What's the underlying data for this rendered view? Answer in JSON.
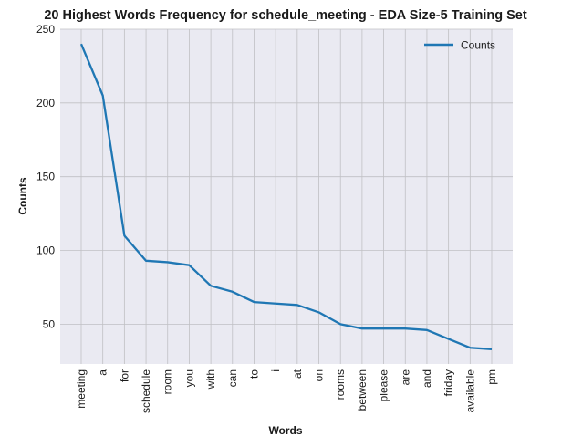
{
  "chart_data": {
    "type": "line",
    "title": "20 Highest Words Frequency for schedule_meeting - EDA Size-5 Training Set",
    "xlabel": "Words",
    "ylabel": "Counts",
    "categories": [
      "meeting",
      "a",
      "for",
      "schedule",
      "room",
      "you",
      "with",
      "can",
      "to",
      "i",
      "at",
      "on",
      "rooms",
      "between",
      "please",
      "are",
      "and",
      "friday",
      "available",
      "pm"
    ],
    "series": [
      {
        "name": "Counts",
        "values": [
          240,
          205,
          110,
          93,
          92,
          90,
          76,
          72,
          65,
          64,
          63,
          58,
          50,
          47,
          47,
          47,
          46,
          40,
          34,
          33
        ],
        "color": "#1f77b4"
      }
    ],
    "ylim": [
      23,
      250
    ],
    "yticks": [
      50,
      100,
      150,
      200,
      250
    ],
    "grid": true,
    "legend": "top-right",
    "background": "#eaeaf2",
    "grid_color": "#c0c0c4"
  }
}
